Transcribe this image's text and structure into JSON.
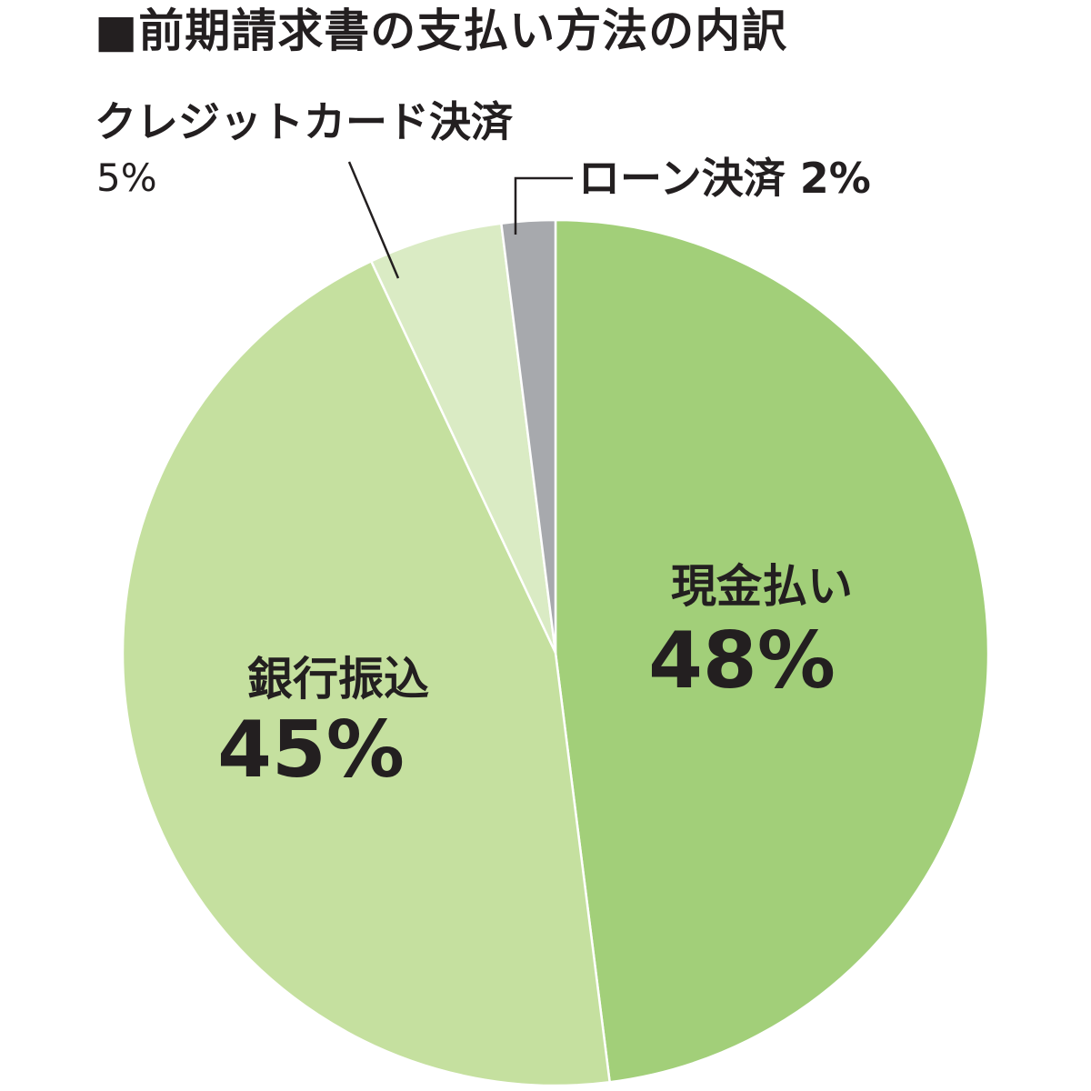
{
  "chart_data": {
    "type": "pie",
    "title": "■前期請求書の支払い方法の内訳",
    "slices": [
      {
        "label": "現金払い",
        "value": 48,
        "value_label": "48%",
        "color": "#a2cf79"
      },
      {
        "label": "銀行振込",
        "value": 45,
        "value_label": "45%",
        "color": "#c5e09f"
      },
      {
        "label": "クレジットカード決済",
        "value": 5,
        "value_label": "5%",
        "color": "#daebc4"
      },
      {
        "label": "ローン決済",
        "value": 2,
        "value_label": "2%",
        "color": "#a7a9ad"
      }
    ],
    "start_angle_deg": 0,
    "direction": "clockwise",
    "legend": "none"
  }
}
